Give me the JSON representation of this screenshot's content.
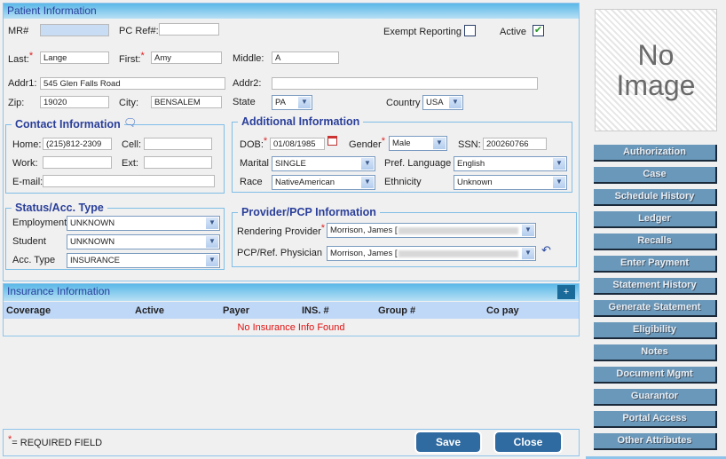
{
  "patient": {
    "title": "Patient Information",
    "mr_label": "MR#",
    "mr_value": "",
    "pcref_label": "PC Ref#:",
    "pcref_value": "",
    "exempt_label": "Exempt Reporting",
    "exempt_checked": false,
    "active_label": "Active",
    "active_checked": true,
    "last_label": "Last:",
    "last": "Lange",
    "first_label": "First:",
    "first": "Amy",
    "middle_label": "Middle:",
    "middle": "A",
    "addr1_label": "Addr1:",
    "addr1": "545 Glen Falls Road",
    "addr2_label": "Addr2:",
    "addr2": "",
    "zip_label": "Zip:",
    "zip": "19020",
    "city_label": "City:",
    "city": "BENSALEM",
    "state_label": "State",
    "state": "PA",
    "country_label": "Country",
    "country": "USA"
  },
  "contact": {
    "title": "Contact Information",
    "home_label": "Home:",
    "home": "(215)812-2309",
    "cell_label": "Cell:",
    "cell": "",
    "work_label": "Work:",
    "work": "",
    "ext_label": "Ext:",
    "ext": "",
    "email_label": "E-mail:",
    "email": ""
  },
  "additional": {
    "title": "Additional Information",
    "dob_label": "DOB:",
    "dob": "01/08/1985",
    "gender_label": "Gender",
    "gender": "Male",
    "ssn_label": "SSN:",
    "ssn": "200260766",
    "marital_label": "Marital",
    "marital": "SINGLE",
    "lang_label": "Pref. Language",
    "lang": "English",
    "race_label": "Race",
    "race": "NativeAmerican",
    "ethnicity_label": "Ethnicity",
    "ethnicity": "Unknown"
  },
  "status": {
    "title": "Status/Acc. Type",
    "employment_label": "Employment",
    "employment": "UNKNOWN",
    "student_label": "Student",
    "student": "UNKNOWN",
    "acctype_label": "Acc. Type",
    "acctype": "INSURANCE"
  },
  "provider": {
    "title": "Provider/PCP Information",
    "rendering_label": "Rendering Provider",
    "rendering": "Morrison, James [",
    "pcp_label": "PCP/Ref. Physician",
    "pcp": "Morrison, James ["
  },
  "insurance": {
    "title": "Insurance Information",
    "add": "+",
    "columns": [
      "Coverage",
      "Active",
      "Payer",
      "INS. #",
      "Group #",
      "Co pay"
    ],
    "empty": "No Insurance Info Found"
  },
  "footer": {
    "required": "= REQUIRED FIELD",
    "save": "Save",
    "close": "Close"
  },
  "photo": {
    "text": "No Image"
  },
  "side_buttons": [
    "Authorization",
    "Case",
    "Schedule History",
    "Ledger",
    "Recalls",
    "Enter Payment",
    "Statement History",
    "Generate Statement",
    "Eligibility",
    "Notes",
    "Document Mgmt",
    "Guarantor",
    "Portal Access",
    "Other Attributes"
  ]
}
